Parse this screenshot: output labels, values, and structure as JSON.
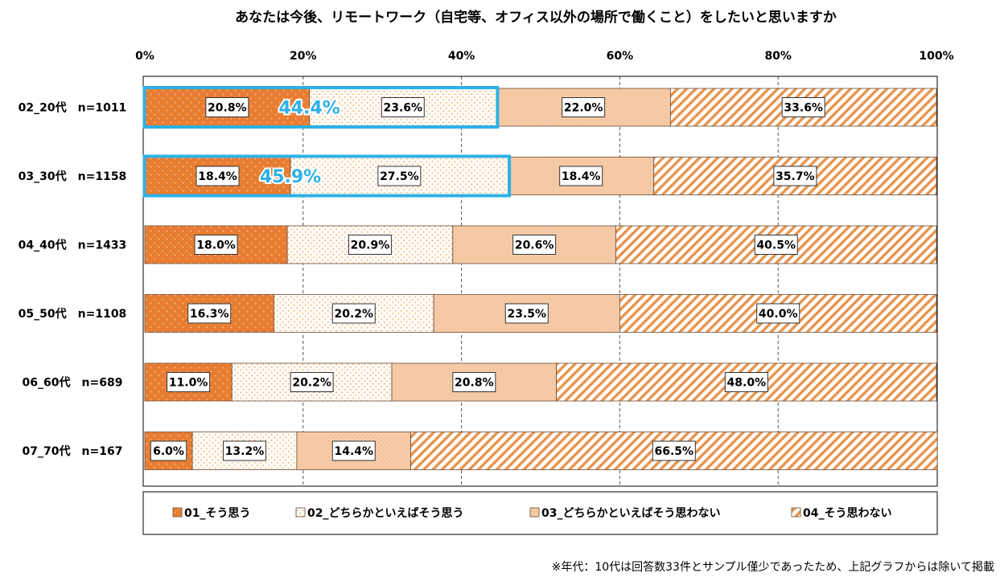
{
  "chart_data": {
    "type": "bar",
    "orientation": "horizontal",
    "stacked": "percent",
    "title": "あなたは今後、リモートワーク（自宅等、オフィス以外の場所で働くこと）をしたいと思いますか",
    "xlim": [
      0,
      100
    ],
    "x_ticks": [
      "0%",
      "20%",
      "40%",
      "60%",
      "80%",
      "100%"
    ],
    "grid": "vertical dashed",
    "legend_position": "bottom",
    "categories": [
      "02_20代　n=1011",
      "03_30代　n=1158",
      "04_40代　n=1433",
      "05_50代　n=1108",
      "06_60代　n=689",
      "07_70代　n=167"
    ],
    "series": [
      {
        "name": "01_そう思う",
        "values": [
          20.8,
          18.4,
          18.0,
          16.3,
          11.0,
          6.0
        ]
      },
      {
        "name": "02_どちらかといえばそう思う",
        "values": [
          23.6,
          27.5,
          20.9,
          20.2,
          20.2,
          13.2
        ]
      },
      {
        "name": "03_どちらかといえばそう思わない",
        "values": [
          22.0,
          18.4,
          20.6,
          23.5,
          20.8,
          14.4
        ]
      },
      {
        "name": "04_そう思わない",
        "values": [
          33.6,
          35.7,
          40.5,
          40.0,
          48.0,
          66.5
        ]
      }
    ],
    "highlights": [
      {
        "category_index": 0,
        "value": 44.4
      },
      {
        "category_index": 1,
        "value": 45.9
      }
    ],
    "footnote": "※年代：10代は回答数33件とサンプル僅少であったため、上記グラフからは除いて掲載"
  },
  "colors": {
    "s1": "#e87d32",
    "s2": "#fdf6ee",
    "s3": "#f5c9a3",
    "s4": "#ffffff",
    "s4_stripe": "#e8944c",
    "highlight": "#2db1e6",
    "grid": "#555555"
  }
}
